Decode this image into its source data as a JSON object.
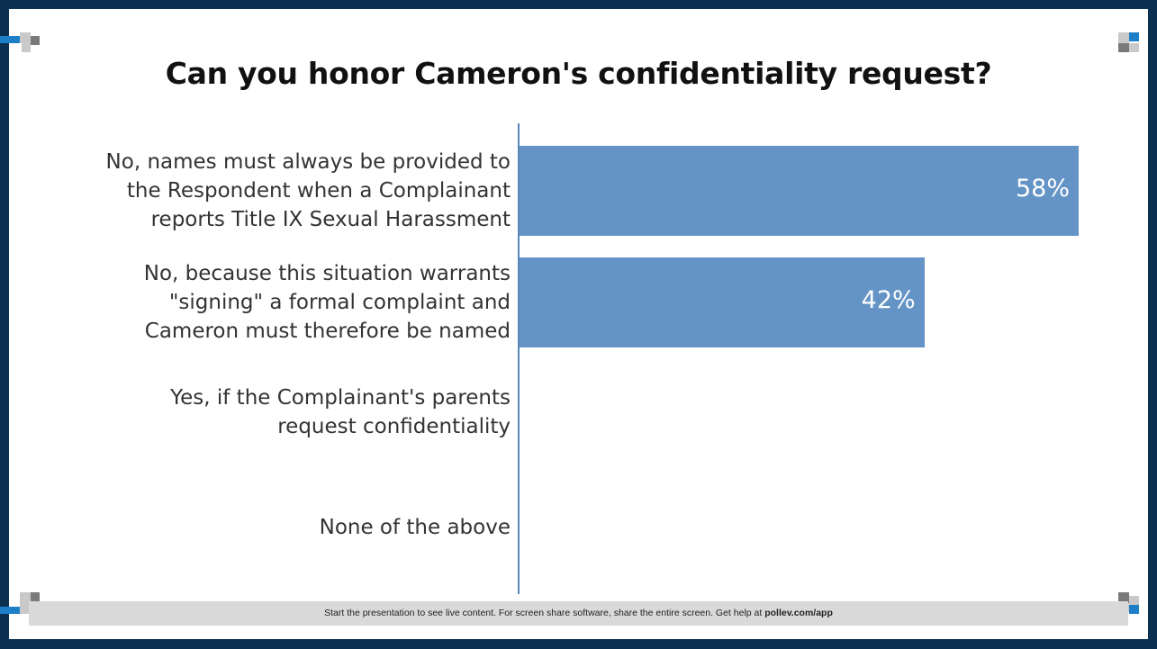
{
  "colors": {
    "frame": "#0b3050",
    "bar": "#6494c6",
    "axis": "#5a88b6",
    "deco_blue": "#1c7fc8",
    "deco_grey": "#7a7a7a",
    "deco_light": "#c9c9c9"
  },
  "chart_data": {
    "type": "bar",
    "orientation": "horizontal",
    "title": "Can you honor Cameron's confidentiality request?",
    "categories": [
      "No, names must always be provided to the Respondent when a Complainant reports Title IX Sexual Harassment",
      "No, because this situation warrants \"signing\" a formal complaint and Cameron must therefore be named",
      "Yes, if the Complainant's parents request confidentiality",
      "None of the above"
    ],
    "category_lines": [
      [
        "No, names must always be provided to",
        "the Respondent when a Complainant",
        "reports Title IX Sexual Harassment"
      ],
      [
        "No, because this situation warrants",
        "\"signing\" a formal complaint and",
        "Cameron must therefore be named"
      ],
      [
        "Yes, if the Complainant's parents",
        "request confidentiality"
      ],
      [
        "None of the above"
      ]
    ],
    "values": [
      58,
      42,
      0,
      0
    ],
    "value_labels": [
      "58%",
      "42%",
      "",
      ""
    ],
    "xlim": [
      0,
      58
    ],
    "grid": false,
    "legend": "none"
  },
  "footer": {
    "text": "Start the presentation to see live content. For screen share software, share the entire screen. Get help at ",
    "link": "pollev.com/app"
  }
}
